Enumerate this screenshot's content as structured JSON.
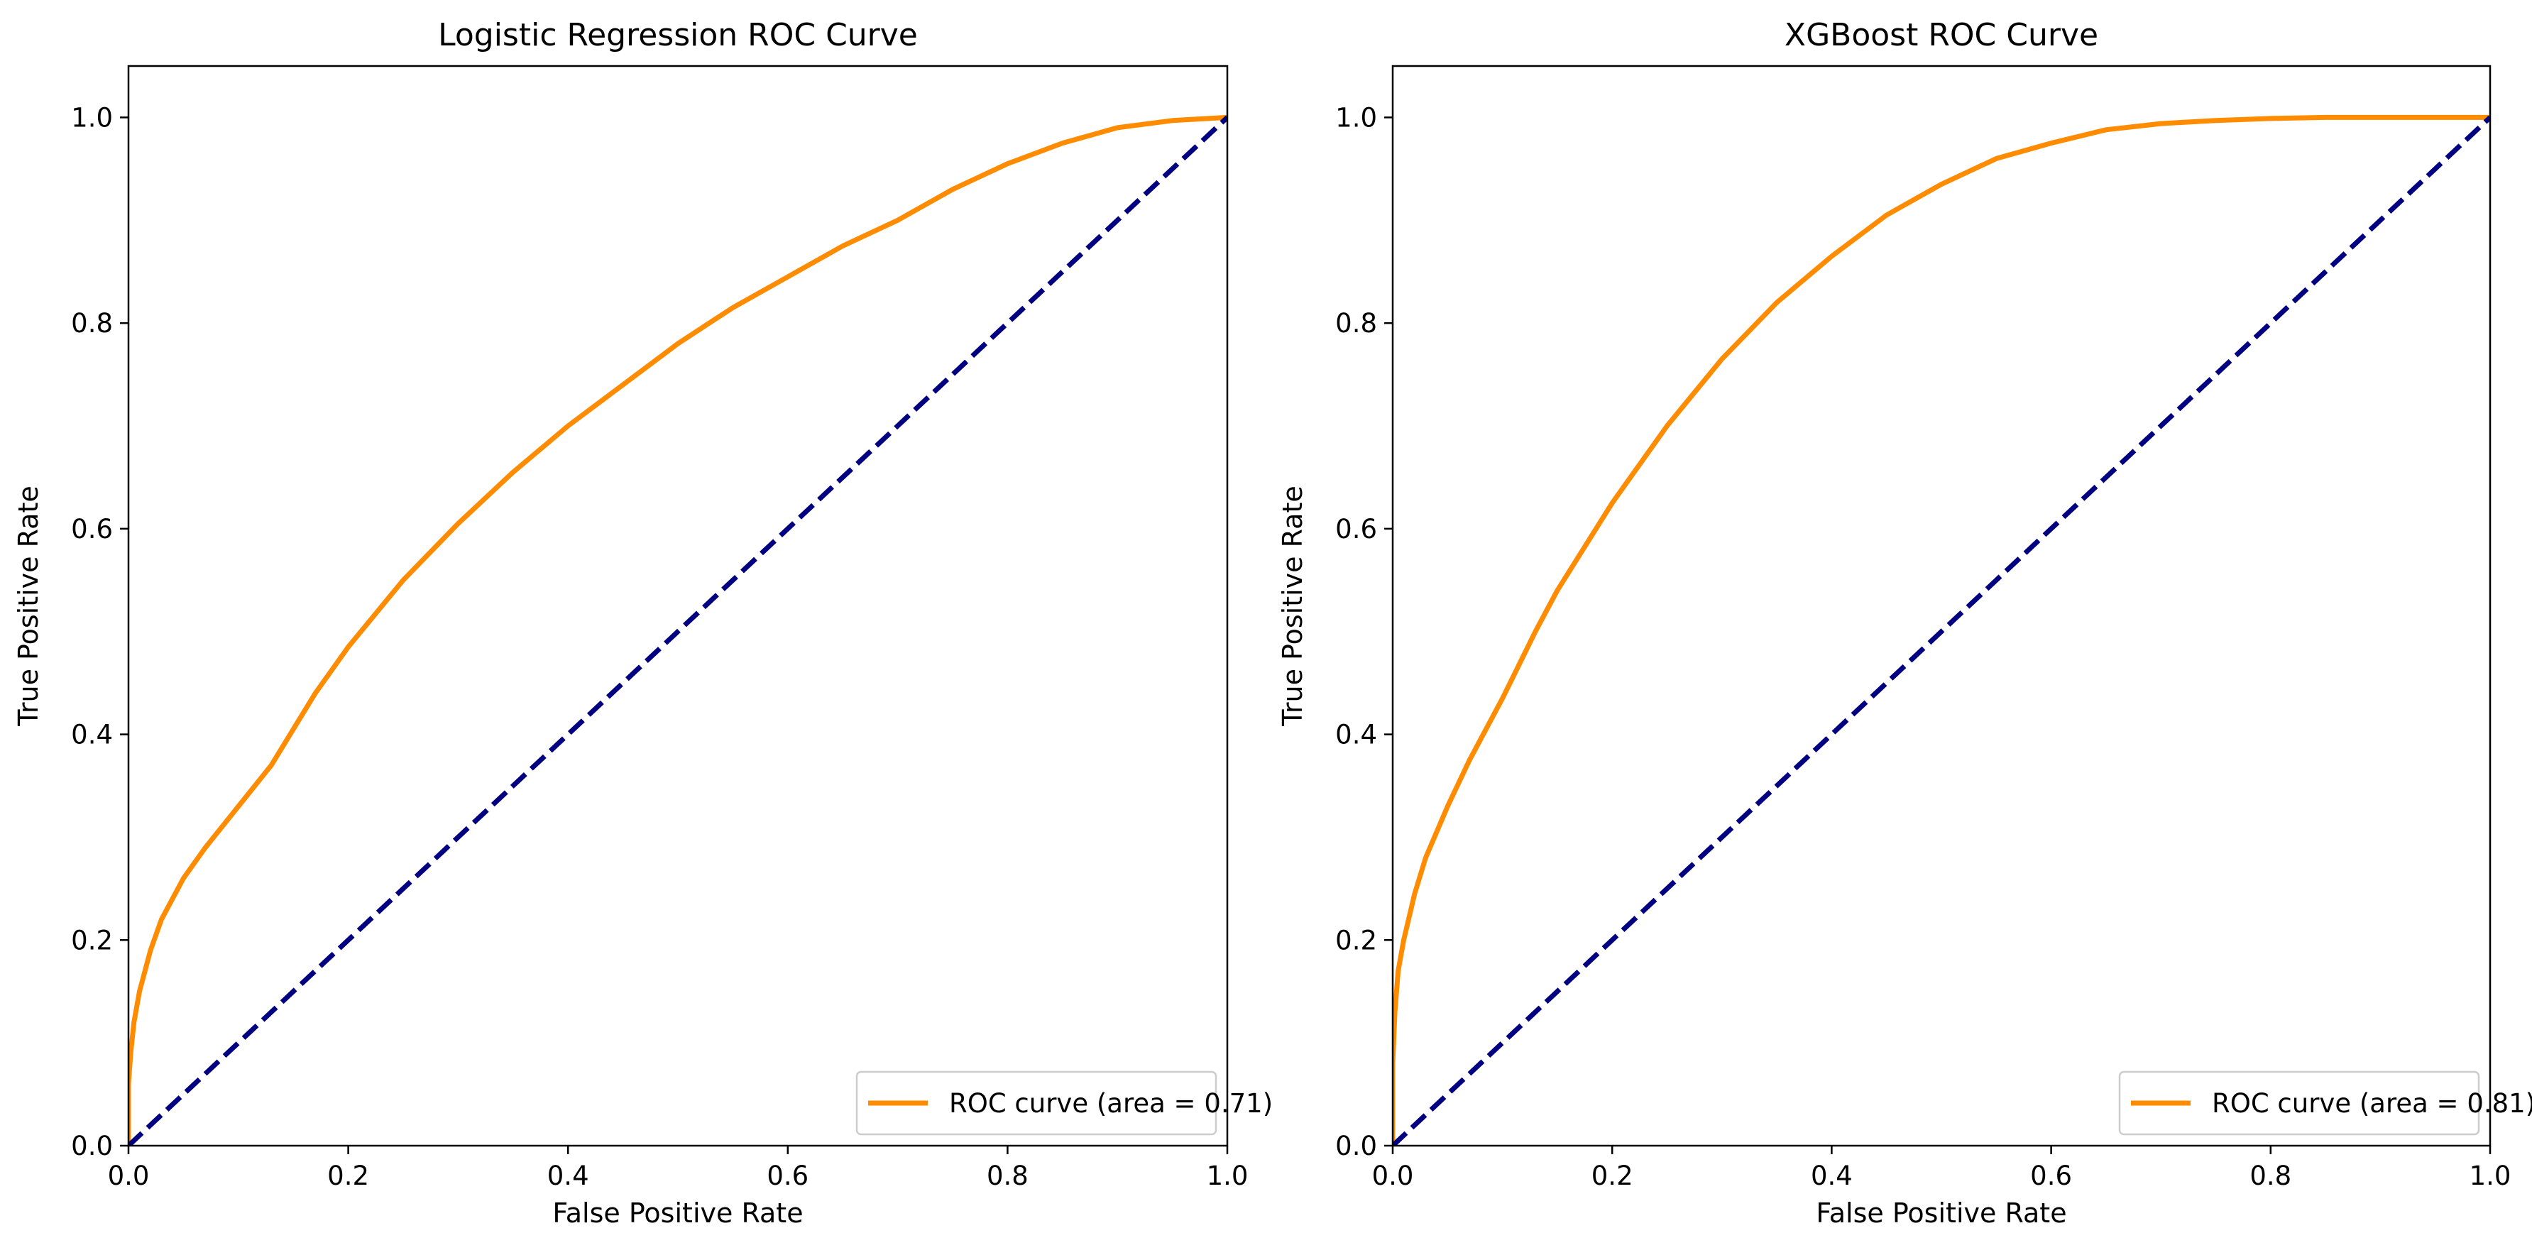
{
  "colors": {
    "roc_curve": "#ff8c00",
    "diagonal": "#000080",
    "axes": "#000000",
    "legend_border": "#cccccc",
    "background": "#ffffff"
  },
  "chart_data": [
    {
      "type": "line",
      "title": "Logistic Regression ROC Curve",
      "xlabel": "False Positive Rate",
      "ylabel": "True Positive Rate",
      "xlim": [
        0.0,
        1.0
      ],
      "ylim": [
        0.0,
        1.05
      ],
      "xticks": [
        "0.0",
        "0.2",
        "0.4",
        "0.6",
        "0.8",
        "1.0"
      ],
      "yticks": [
        "0.0",
        "0.2",
        "0.4",
        "0.6",
        "0.8",
        "1.0"
      ],
      "grid": false,
      "legend_position": "lower right",
      "legend": [
        "ROC curve (area = 0.71)"
      ],
      "series": [
        {
          "name": "ROC curve (area = 0.71)",
          "style": "solid",
          "x": [
            0.0,
            0.0,
            0.002,
            0.005,
            0.01,
            0.02,
            0.03,
            0.05,
            0.07,
            0.1,
            0.13,
            0.15,
            0.17,
            0.2,
            0.25,
            0.3,
            0.35,
            0.4,
            0.45,
            0.5,
            0.55,
            0.6,
            0.65,
            0.7,
            0.75,
            0.8,
            0.85,
            0.9,
            0.95,
            1.0
          ],
          "y": [
            0.0,
            0.06,
            0.09,
            0.12,
            0.15,
            0.19,
            0.22,
            0.26,
            0.29,
            0.33,
            0.37,
            0.405,
            0.44,
            0.485,
            0.55,
            0.605,
            0.655,
            0.7,
            0.74,
            0.78,
            0.815,
            0.845,
            0.875,
            0.9,
            0.93,
            0.955,
            0.975,
            0.99,
            0.997,
            1.0
          ]
        },
        {
          "style": "dashed",
          "x": [
            0.0,
            1.0
          ],
          "y": [
            0.0,
            1.0
          ]
        }
      ]
    },
    {
      "type": "line",
      "title": "XGBoost ROC Curve",
      "xlabel": "False Positive Rate",
      "ylabel": "True Positive Rate",
      "xlim": [
        0.0,
        1.0
      ],
      "ylim": [
        0.0,
        1.05
      ],
      "xticks": [
        "0.0",
        "0.2",
        "0.4",
        "0.6",
        "0.8",
        "1.0"
      ],
      "yticks": [
        "0.0",
        "0.2",
        "0.4",
        "0.6",
        "0.8",
        "1.0"
      ],
      "grid": false,
      "legend_position": "lower right",
      "legend": [
        "ROC curve (area = 0.81)"
      ],
      "series": [
        {
          "name": "ROC curve (area = 0.81)",
          "style": "solid",
          "x": [
            0.0,
            0.0,
            0.002,
            0.005,
            0.01,
            0.02,
            0.03,
            0.05,
            0.07,
            0.1,
            0.13,
            0.15,
            0.2,
            0.25,
            0.3,
            0.35,
            0.4,
            0.45,
            0.5,
            0.55,
            0.6,
            0.65,
            0.7,
            0.75,
            0.8,
            0.85,
            0.9,
            0.95,
            1.0
          ],
          "y": [
            0.0,
            0.08,
            0.13,
            0.17,
            0.2,
            0.245,
            0.28,
            0.33,
            0.375,
            0.435,
            0.5,
            0.54,
            0.625,
            0.7,
            0.765,
            0.82,
            0.865,
            0.905,
            0.935,
            0.96,
            0.975,
            0.988,
            0.994,
            0.997,
            0.999,
            1.0,
            1.0,
            1.0,
            1.0
          ]
        },
        {
          "style": "dashed",
          "x": [
            0.0,
            1.0
          ],
          "y": [
            0.0,
            1.0
          ]
        }
      ]
    }
  ]
}
